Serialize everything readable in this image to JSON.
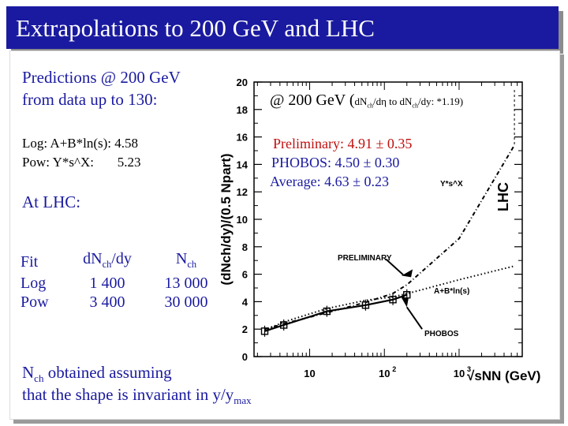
{
  "slide": {
    "title": "Extrapolations to 200 GeV and LHC",
    "pred_line1": "Predictions @ 200 GeV",
    "pred_line2": "from data up to 130:",
    "log_line": "Log: A+B*ln(s):  4.58",
    "pow_line": "Pow: Y*s^X:       5.23",
    "at_lhc": "At LHC:",
    "table": {
      "headers": [
        "Fit",
        "dN",
        "ch",
        "/dy",
        "N",
        "ch"
      ],
      "rows": [
        [
          "Log",
          "1 400",
          "13 000"
        ],
        [
          "Pow",
          "3 400",
          "30 000"
        ]
      ]
    },
    "nch_note_a": "N",
    "nch_note_sub": "ch",
    "nch_note_b": " obtained assuming",
    "note_line2a": "that the shape is invariant in y/y",
    "note_line2sub": "max"
  },
  "overlay": {
    "at200": "@ 200 GeV (",
    "at200_small": "dN",
    "at200_small_sub": "ch",
    "at200_small2": "/d",
    "eta": "η",
    "at200_small3": " to dN",
    "at200_small_sub2": "ch",
    "at200_small4": "/dy: *1.19)",
    "prelim": "Preliminary: 4.91 ± 0.35",
    "phobos": "PHOBOS: 4.50 ± 0.30",
    "average": "Average: 4.63 ± 0.23"
  },
  "chart_data": {
    "type": "line",
    "ylabel": "(dNch/dy)/(0.5 Npart)",
    "xlabel": "√sNN (GeV)",
    "xscale": "log",
    "xlim": [
      1.8,
      7000
    ],
    "ylim": [
      0,
      20
    ],
    "yticks": [
      0,
      2,
      4,
      6,
      8,
      10,
      12,
      14,
      16,
      18,
      20
    ],
    "xticks": [
      {
        "value": 10,
        "label": "10"
      },
      {
        "value": 100,
        "label": "10"
      },
      {
        "value": 1000,
        "label": "10"
      }
    ],
    "xtick_sup": [
      "",
      "2",
      "3"
    ],
    "labels": {
      "preliminary": "PRELIMINARY",
      "log_fit": "A+B*ln(s)",
      "pow_fit": "Y*s^X",
      "phobos": "PHOBOS",
      "lhc": "LHC"
    },
    "series": [
      {
        "name": "A+B*ln(s)",
        "x": [
          2.5,
          5,
          17,
          56,
          130,
          200,
          1000,
          5500
        ],
        "y": [
          1.95,
          2.6,
          3.5,
          4.1,
          4.35,
          4.58,
          5.6,
          6.6
        ]
      },
      {
        "name": "Y*s^X",
        "x": [
          2.5,
          5,
          17,
          56,
          130,
          200,
          1000,
          5500
        ],
        "y": [
          2.0,
          2.45,
          3.2,
          3.95,
          4.6,
          5.23,
          8.6,
          15.4
        ]
      },
      {
        "name": "data",
        "x": [
          2.5,
          4.5,
          17,
          56,
          130,
          200
        ],
        "y": [
          1.85,
          2.3,
          3.3,
          3.75,
          4.15,
          4.5
        ]
      }
    ]
  }
}
